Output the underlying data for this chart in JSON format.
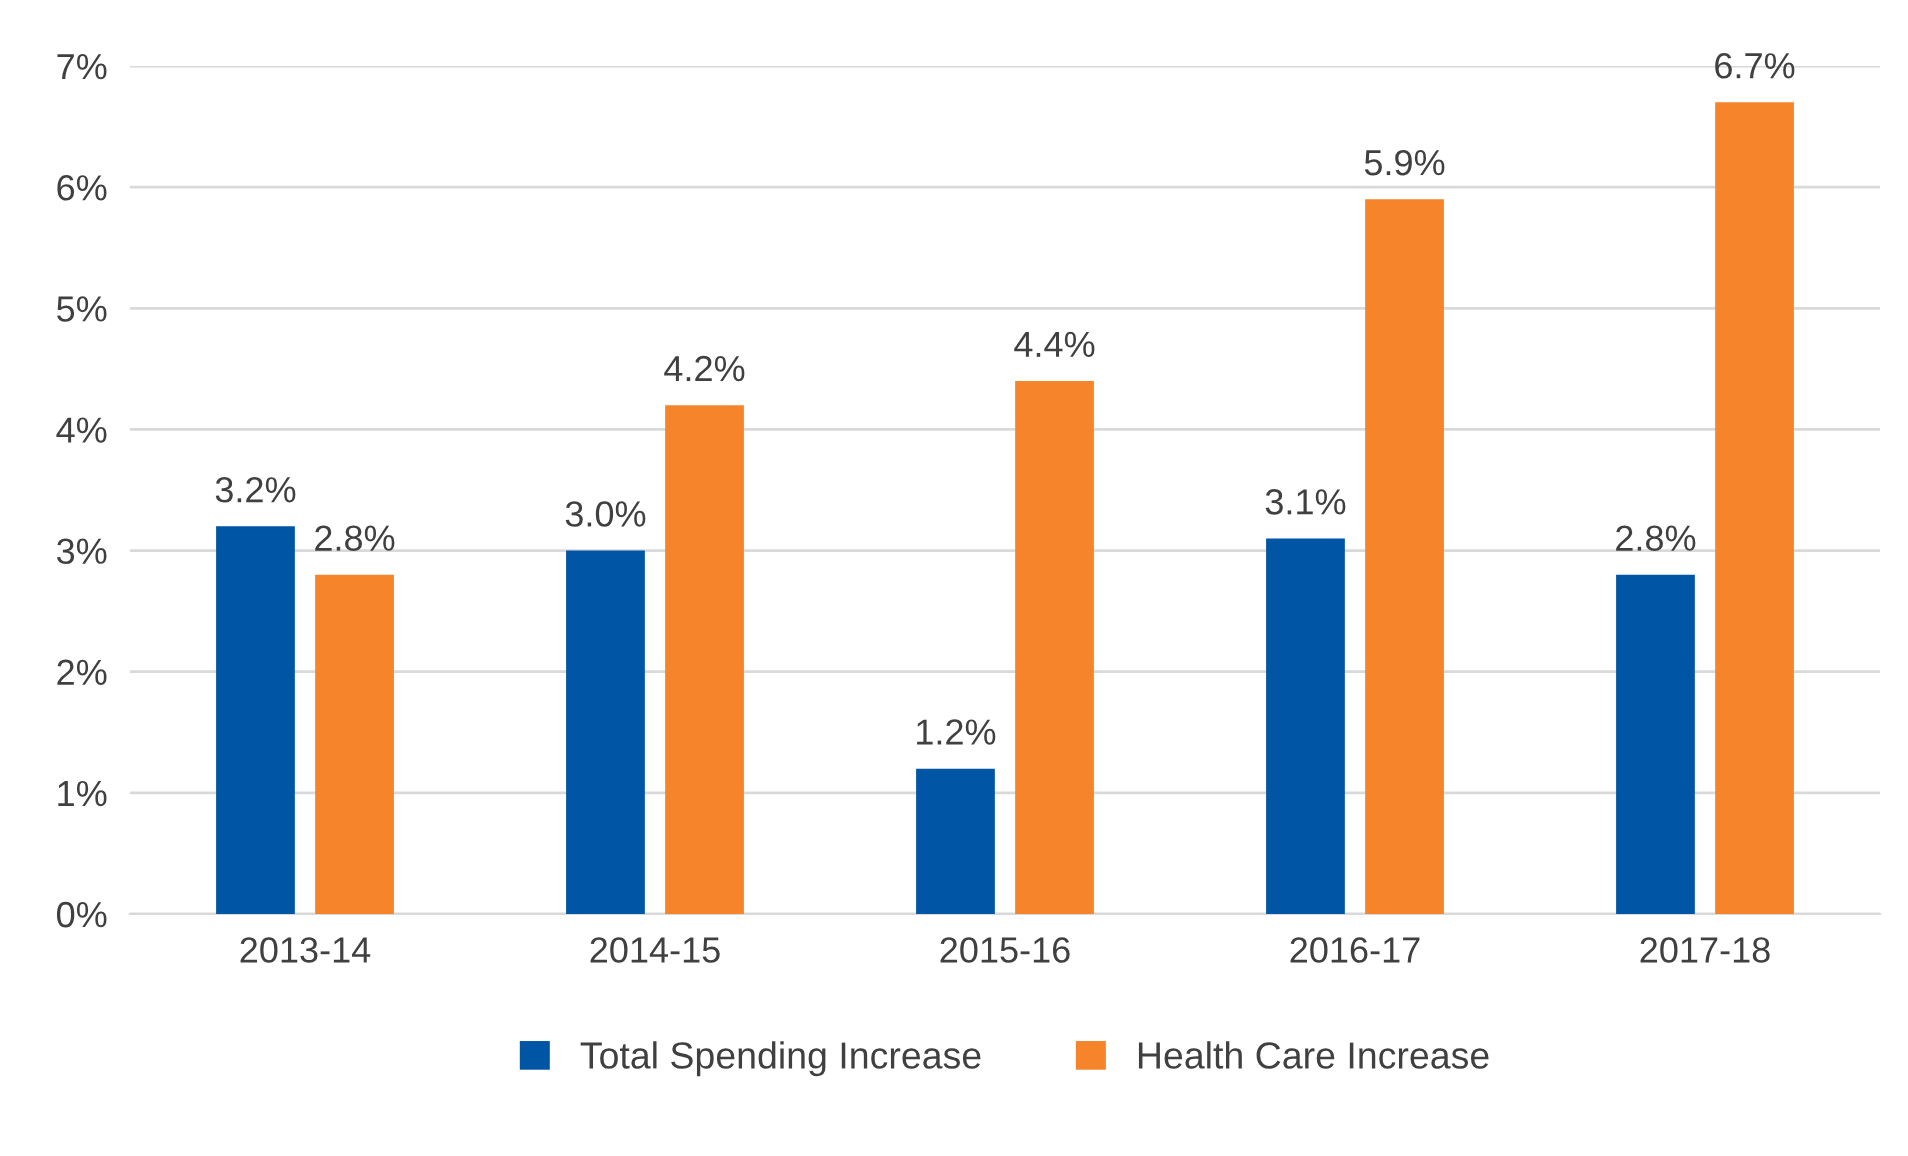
{
  "chart_data": {
    "type": "bar",
    "categories": [
      "2013-14",
      "2014-15",
      "2015-16",
      "2016-17",
      "2017-18"
    ],
    "series": [
      {
        "name": "Total Spending Increase",
        "color": "#0055a5",
        "values": [
          3.2,
          3.0,
          1.2,
          3.1,
          2.8
        ],
        "value_labels": [
          "3.2%",
          "3.0%",
          "1.2%",
          "3.1%",
          "2.8%"
        ]
      },
      {
        "name": "Health Care Increase",
        "color": "#f5842a",
        "values": [
          2.8,
          4.2,
          4.4,
          5.9,
          6.7
        ],
        "value_labels": [
          "2.8%",
          "4.2%",
          "4.4%",
          "5.9%",
          "6.7%"
        ]
      }
    ],
    "ylim": [
      0,
      7
    ],
    "yticks": [
      {
        "value": 0,
        "label": "0%"
      },
      {
        "value": 1,
        "label": "1%"
      },
      {
        "value": 2,
        "label": "2%"
      },
      {
        "value": 3,
        "label": "3%"
      },
      {
        "value": 4,
        "label": "4%"
      },
      {
        "value": 5,
        "label": "5%"
      },
      {
        "value": 6,
        "label": "6%"
      },
      {
        "value": 7,
        "label": "7%"
      }
    ],
    "grid": "y",
    "legend": "bottom"
  }
}
